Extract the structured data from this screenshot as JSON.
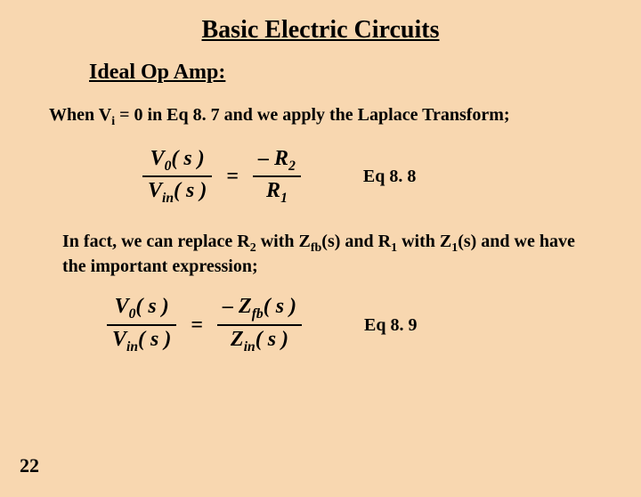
{
  "colors": {
    "background": "#f8d7b0",
    "text": "#000000"
  },
  "title": "Basic Electric Circuits",
  "subtitle": "Ideal Op Amp:",
  "para1_a": "When V",
  "para1_sub": "i",
  "para1_b": " = 0 in Eq 8. 7 and we apply the Laplace Transform;",
  "eq1": {
    "num_a": "V",
    "num_sub": "0",
    "num_b": "( s )",
    "den_a": "V",
    "den_sub": "in",
    "den_b": "( s )",
    "eq": "=",
    "rnum_a": "– R",
    "rnum_sub": "2",
    "rden_a": "R",
    "rden_sub": "1",
    "label": "Eq 8. 8"
  },
  "para2_a": "In fact, we can replace R",
  "para2_sub1": "2",
  "para2_b": " with  Z",
  "para2_sub2": "fb",
  "para2_c": "(s) and R",
  "para2_sub3": "1",
  "para2_d": " with Z",
  "para2_sub4": "1",
  "para2_e": "(s) and we have the important expression;",
  "eq2": {
    "num_a": "V",
    "num_sub": "0",
    "num_b": "( s )",
    "den_a": "V",
    "den_sub": "in",
    "den_b": "( s )",
    "eq": "=",
    "rnum_a": "– Z",
    "rnum_sub": "fb",
    "rnum_b": "( s )",
    "rden_a": "Z",
    "rden_sub": "in",
    "rden_b": "( s )",
    "label": "Eq 8. 9"
  },
  "page": "22"
}
